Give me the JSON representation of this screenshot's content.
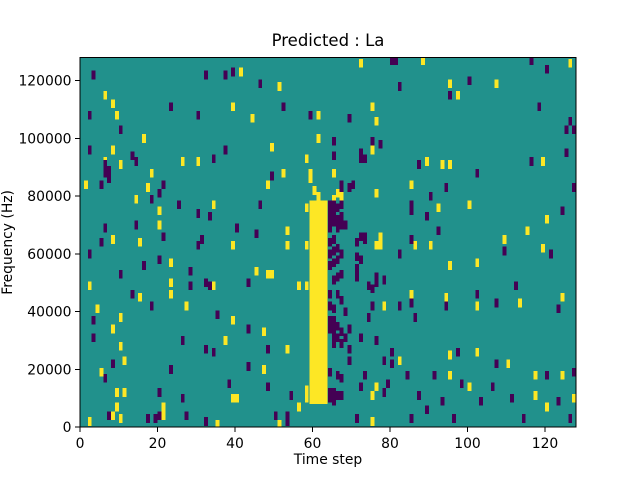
{
  "figure": {
    "title": "Predicted : La",
    "background_color": "#ffffff"
  },
  "chart_data": {
    "type": "heatmap",
    "title": "Predicted : La",
    "xlabel": "Time step",
    "ylabel": "Frequency (Hz)",
    "xlim": [
      0,
      128
    ],
    "ylim": [
      0,
      128000
    ],
    "x_ticks": [
      0,
      20,
      40,
      60,
      80,
      100,
      120
    ],
    "y_ticks": [
      0,
      20000,
      40000,
      60000,
      80000,
      100000,
      120000
    ],
    "grid": false,
    "legend": "none",
    "colormap": "viridis",
    "colors": {
      "background_mid": "#21918c",
      "high": "#fde725",
      "low": "#440154",
      "axis": "#000000",
      "figure_bg": "#ffffff"
    },
    "cell_units": {
      "dt_steps": 1,
      "df_khz": 3
    },
    "band": {
      "value": "high",
      "t_start": 59.2,
      "t_end": 63.9,
      "f_start_khz": 8,
      "f_end_khz": 78.5
    },
    "high_cells_t_fkhz": [
      [
        41,
        123
      ],
      [
        51,
        118
      ],
      [
        6,
        115
      ],
      [
        8,
        112
      ],
      [
        39,
        111
      ],
      [
        9,
        108
      ],
      [
        44,
        107
      ],
      [
        16,
        100
      ],
      [
        8,
        96
      ],
      [
        49,
        97
      ],
      [
        26,
        92
      ],
      [
        30,
        92
      ],
      [
        6,
        92
      ],
      [
        10,
        91
      ],
      [
        18,
        88
      ],
      [
        52,
        88
      ],
      [
        1,
        84
      ],
      [
        17,
        83
      ],
      [
        48,
        84
      ],
      [
        14,
        79
      ],
      [
        20,
        75
      ],
      [
        34,
        77
      ],
      [
        53,
        68
      ],
      [
        20,
        70
      ],
      [
        8,
        65
      ],
      [
        61,
        100
      ],
      [
        61,
        108
      ],
      [
        58,
        93
      ],
      [
        59,
        88
      ],
      [
        59,
        86
      ],
      [
        60,
        82
      ],
      [
        61,
        80
      ],
      [
        58,
        76
      ],
      [
        72,
        126
      ],
      [
        88,
        127
      ],
      [
        126,
        126
      ],
      [
        95,
        119
      ],
      [
        107,
        119
      ],
      [
        97,
        115
      ],
      [
        75,
        111
      ],
      [
        76,
        106
      ],
      [
        75,
        96
      ],
      [
        89,
        92
      ],
      [
        93,
        91
      ],
      [
        95,
        91
      ],
      [
        119,
        92
      ],
      [
        85,
        84
      ],
      [
        66,
        81
      ],
      [
        76,
        81
      ],
      [
        67,
        80
      ],
      [
        65,
        88
      ],
      [
        65,
        79
      ],
      [
        92,
        76
      ],
      [
        100,
        77
      ],
      [
        115,
        68
      ],
      [
        120,
        72
      ],
      [
        77,
        66
      ],
      [
        109,
        65
      ],
      [
        15,
        64
      ],
      [
        39,
        63
      ],
      [
        53,
        63
      ],
      [
        58,
        63
      ],
      [
        23,
        57
      ],
      [
        45,
        54
      ],
      [
        48,
        53
      ],
      [
        49,
        53
      ],
      [
        2,
        49
      ],
      [
        23,
        50
      ],
      [
        34,
        49
      ],
      [
        56,
        49
      ],
      [
        58,
        49
      ],
      [
        15,
        45
      ],
      [
        23,
        46
      ],
      [
        27,
        42
      ],
      [
        4,
        41
      ],
      [
        10,
        38
      ],
      [
        39,
        37
      ],
      [
        8,
        34
      ],
      [
        47,
        33
      ],
      [
        37,
        30
      ],
      [
        10,
        28
      ],
      [
        53,
        27
      ],
      [
        11,
        23
      ],
      [
        5,
        19
      ],
      [
        47,
        20
      ],
      [
        9,
        12
      ],
      [
        11,
        12
      ],
      [
        39,
        10
      ],
      [
        40,
        10
      ],
      [
        21,
        7
      ],
      [
        9,
        7
      ],
      [
        56,
        7
      ],
      [
        8,
        4
      ],
      [
        21,
        4
      ],
      [
        10,
        3
      ],
      [
        2,
        2
      ],
      [
        51,
        1
      ],
      [
        35,
        1
      ],
      [
        58,
        13
      ],
      [
        58,
        10
      ],
      [
        76,
        63
      ],
      [
        77,
        63
      ],
      [
        86,
        63
      ],
      [
        90,
        63
      ],
      [
        119,
        62
      ],
      [
        102,
        57
      ],
      [
        95,
        56
      ],
      [
        85,
        46
      ],
      [
        94,
        45
      ],
      [
        102,
        42
      ],
      [
        113,
        43
      ],
      [
        124,
        45
      ],
      [
        78,
        42
      ],
      [
        82,
        23
      ],
      [
        110,
        22
      ],
      [
        95,
        25
      ],
      [
        102,
        26
      ],
      [
        117,
        18
      ],
      [
        124,
        18
      ],
      [
        95,
        18
      ],
      [
        76,
        14
      ],
      [
        100,
        14
      ],
      [
        75,
        11
      ],
      [
        117,
        11
      ],
      [
        120,
        7
      ],
      [
        75,
        2
      ],
      [
        127,
        10
      ]
    ],
    "low_cells_t_fkhz": [
      [
        3,
        122
      ],
      [
        32,
        122
      ],
      [
        37,
        122
      ],
      [
        39,
        123
      ],
      [
        46,
        119
      ],
      [
        23,
        111
      ],
      [
        52,
        111
      ],
      [
        2,
        108
      ],
      [
        30,
        108
      ],
      [
        59,
        108
      ],
      [
        10,
        103
      ],
      [
        2,
        96
      ],
      [
        13,
        94
      ],
      [
        14,
        92
      ],
      [
        34,
        93
      ],
      [
        37,
        96
      ],
      [
        6,
        91
      ],
      [
        7,
        89
      ],
      [
        6,
        88
      ],
      [
        7,
        86
      ],
      [
        5,
        84
      ],
      [
        21,
        84
      ],
      [
        49,
        87
      ],
      [
        20,
        81
      ],
      [
        18,
        79
      ],
      [
        25,
        77
      ],
      [
        30,
        74
      ],
      [
        33,
        73
      ],
      [
        46,
        77
      ],
      [
        40,
        69
      ],
      [
        45,
        67
      ],
      [
        6,
        69
      ],
      [
        14,
        70
      ],
      [
        21,
        66
      ],
      [
        31,
        65
      ],
      [
        80,
        127
      ],
      [
        81,
        127
      ],
      [
        116,
        127
      ],
      [
        120,
        124
      ],
      [
        82,
        118
      ],
      [
        100,
        120
      ],
      [
        95,
        115
      ],
      [
        118,
        111
      ],
      [
        69,
        107
      ],
      [
        126,
        106
      ],
      [
        125,
        103
      ],
      [
        127,
        103
      ],
      [
        125,
        95
      ],
      [
        65,
        99
      ],
      [
        75,
        99
      ],
      [
        77,
        98
      ],
      [
        72,
        95
      ],
      [
        72,
        93
      ],
      [
        73,
        93
      ],
      [
        65,
        94
      ],
      [
        87,
        91
      ],
      [
        116,
        92
      ],
      [
        102,
        88
      ],
      [
        67,
        84
      ],
      [
        70,
        84
      ],
      [
        94,
        83
      ],
      [
        127,
        83
      ],
      [
        90,
        80
      ],
      [
        85,
        77
      ],
      [
        85,
        75
      ],
      [
        124,
        75
      ],
      [
        89,
        73
      ],
      [
        72,
        66
      ],
      [
        73,
        66
      ],
      [
        85,
        65
      ],
      [
        92,
        68
      ],
      [
        67,
        83
      ],
      [
        69,
        83
      ],
      [
        71,
        64
      ],
      [
        73,
        65
      ],
      [
        5,
        64
      ],
      [
        30,
        63
      ],
      [
        2,
        60
      ],
      [
        20,
        58
      ],
      [
        16,
        56
      ],
      [
        10,
        53
      ],
      [
        28,
        54
      ],
      [
        28,
        49
      ],
      [
        32,
        50
      ],
      [
        33,
        49
      ],
      [
        43,
        50
      ],
      [
        13,
        46
      ],
      [
        18,
        42
      ],
      [
        35,
        39
      ],
      [
        3,
        37
      ],
      [
        43,
        34
      ],
      [
        3,
        31
      ],
      [
        26,
        30
      ],
      [
        32,
        27
      ],
      [
        34,
        26
      ],
      [
        48,
        27
      ],
      [
        8,
        22
      ],
      [
        23,
        20
      ],
      [
        43,
        21
      ],
      [
        6,
        17
      ],
      [
        38,
        15
      ],
      [
        48,
        14
      ],
      [
        20,
        12
      ],
      [
        26,
        10
      ],
      [
        54,
        11
      ],
      [
        7,
        4
      ],
      [
        20,
        4
      ],
      [
        17,
        3
      ],
      [
        19,
        3
      ],
      [
        27,
        4
      ],
      [
        50,
        4
      ],
      [
        53,
        4
      ],
      [
        32,
        2
      ],
      [
        53,
        2
      ],
      [
        71,
        59
      ],
      [
        71,
        55
      ],
      [
        71,
        52
      ],
      [
        67,
        53
      ],
      [
        76,
        52
      ],
      [
        82,
        60
      ],
      [
        109,
        61
      ],
      [
        121,
        60
      ],
      [
        74,
        49
      ],
      [
        75,
        48
      ],
      [
        76,
        50
      ],
      [
        78,
        51
      ],
      [
        85,
        43
      ],
      [
        94,
        42
      ],
      [
        102,
        46
      ],
      [
        112,
        49
      ],
      [
        107,
        43
      ],
      [
        123,
        41
      ],
      [
        82,
        42
      ],
      [
        86,
        38
      ],
      [
        74,
        38
      ],
      [
        68,
        40
      ],
      [
        69,
        34
      ],
      [
        72,
        31
      ],
      [
        76,
        30
      ],
      [
        75,
        42
      ],
      [
        97,
        26
      ],
      [
        69,
        27
      ],
      [
        69,
        23
      ],
      [
        78,
        23
      ],
      [
        80,
        22
      ],
      [
        80,
        26
      ],
      [
        84,
        18
      ],
      [
        107,
        22
      ],
      [
        120,
        18
      ],
      [
        127,
        19
      ],
      [
        91,
        18
      ],
      [
        73,
        18
      ],
      [
        79,
        15
      ],
      [
        72,
        14
      ],
      [
        72,
        58
      ],
      [
        98,
        15
      ],
      [
        103,
        9
      ],
      [
        106,
        14
      ],
      [
        87,
        11
      ],
      [
        93,
        9
      ],
      [
        111,
        10
      ],
      [
        89,
        6
      ],
      [
        78,
        12
      ],
      [
        123,
        9
      ],
      [
        96,
        3
      ],
      [
        71,
        3
      ],
      [
        85,
        3
      ],
      [
        114,
        3
      ],
      [
        126,
        3
      ],
      [
        64,
        77
      ],
      [
        64,
        74
      ],
      [
        64,
        71
      ],
      [
        64,
        69
      ],
      [
        64,
        64
      ],
      [
        64,
        60
      ],
      [
        64,
        56
      ],
      [
        64,
        46
      ],
      [
        64,
        42
      ],
      [
        64,
        37
      ],
      [
        64,
        34
      ],
      [
        64,
        19
      ],
      [
        64,
        12
      ],
      [
        64,
        10
      ],
      [
        65,
        77
      ],
      [
        65,
        74
      ],
      [
        65,
        71
      ],
      [
        65,
        65
      ],
      [
        65,
        61
      ],
      [
        65,
        57
      ],
      [
        65,
        51
      ],
      [
        65,
        41
      ],
      [
        65,
        37
      ],
      [
        65,
        36
      ],
      [
        65,
        33
      ],
      [
        65,
        30
      ],
      [
        65,
        29
      ],
      [
        65,
        12
      ],
      [
        65,
        9
      ],
      [
        66,
        76
      ],
      [
        66,
        72
      ],
      [
        66,
        69
      ],
      [
        66,
        62
      ],
      [
        66,
        58
      ],
      [
        66,
        52
      ],
      [
        66,
        46
      ],
      [
        66,
        35
      ],
      [
        66,
        31
      ],
      [
        66,
        18
      ],
      [
        66,
        11
      ],
      [
        67,
        77
      ],
      [
        67,
        73
      ],
      [
        67,
        70
      ],
      [
        67,
        60
      ],
      [
        67,
        53
      ],
      [
        67,
        44
      ],
      [
        67,
        33
      ],
      [
        67,
        29
      ],
      [
        67,
        17
      ],
      [
        67,
        11
      ],
      [
        68,
        70
      ],
      [
        68,
        31
      ]
    ]
  }
}
